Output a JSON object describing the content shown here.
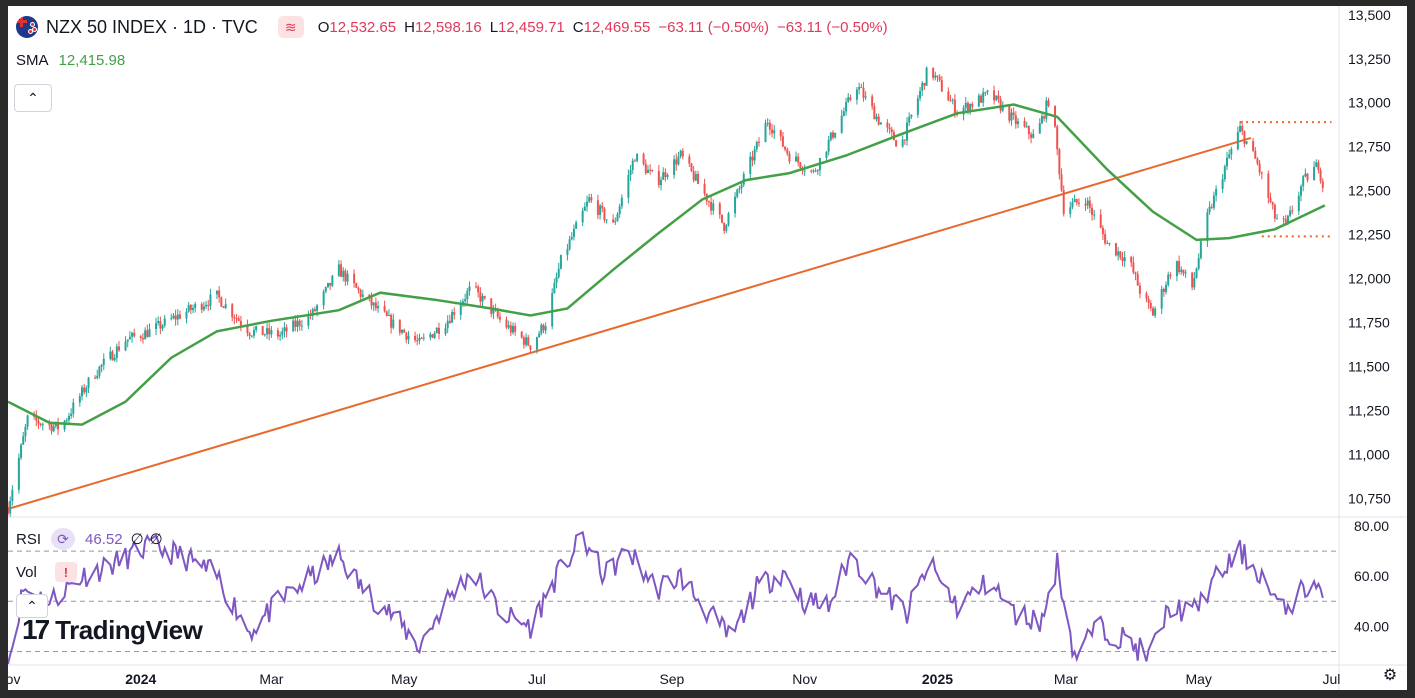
{
  "header": {
    "symbol_title": "NZX 50 INDEX · 1D · TVC",
    "ohlc": [
      {
        "label": "O",
        "value": "12,532.65"
      },
      {
        "label": "H",
        "value": "12,598.16"
      },
      {
        "label": "L",
        "value": "12,459.71"
      },
      {
        "label": "C",
        "value": "12,469.55"
      }
    ],
    "change_1": "−63.11 (−0.50%)",
    "change_2": "−63.11 (−0.50%)",
    "flag_icon": "new-zealand-flag-icon",
    "badge_icon": "pulse-wave-icon"
  },
  "sma": {
    "label": "SMA",
    "value": "12,415.98"
  },
  "rsi_legend": {
    "label": "RSI",
    "value": "46.52",
    "extra1": "∅",
    "extra2": "∅"
  },
  "vol_legend": {
    "label": "Vol"
  },
  "logo_text": "TradingView",
  "colors": {
    "up": "#26a69a",
    "down": "#ef5350",
    "sma": "#43a047",
    "trendline": "#e8692c",
    "rsi": "#7e57c2",
    "text_red": "#e0395a"
  },
  "chart_data": [
    {
      "type": "candlestick",
      "title": "NZX 50 INDEX",
      "x_range": [
        "2023-11-01",
        "2025-07-04"
      ],
      "ylim": [
        10650,
        13550
      ],
      "price_ticks": [
        "13,500",
        "13,250",
        "13,000",
        "12,750",
        "12,500",
        "12,250",
        "12,000",
        "11,750",
        "11,500",
        "11,250",
        "11,000",
        "10,750"
      ],
      "price_tick_values": [
        13500,
        13250,
        13000,
        12750,
        12500,
        12250,
        12000,
        11750,
        11500,
        11250,
        11000,
        10750
      ],
      "time_ticks": [
        "Nov",
        "2024",
        "Mar",
        "May",
        "Jul",
        "Sep",
        "Nov",
        "2025",
        "Mar",
        "May",
        "Jul"
      ],
      "time_tick_dates": [
        "2023-11-01",
        "2024-01-01",
        "2024-03-01",
        "2024-05-01",
        "2024-07-01",
        "2024-09-01",
        "2024-11-01",
        "2025-01-01",
        "2025-03-01",
        "2025-05-01",
        "2025-07-01"
      ],
      "close_path": [
        [
          "2023-11-01",
          10700
        ],
        [
          "2023-11-10",
          11200
        ],
        [
          "2023-11-25",
          11150
        ],
        [
          "2023-12-10",
          11450
        ],
        [
          "2023-12-25",
          11650
        ],
        [
          "2024-01-05",
          11700
        ],
        [
          "2024-01-20",
          11800
        ],
        [
          "2024-02-05",
          11900
        ],
        [
          "2024-02-20",
          11700
        ],
        [
          "2024-03-05",
          11680
        ],
        [
          "2024-03-20",
          11800
        ],
        [
          "2024-04-01",
          12050
        ],
        [
          "2024-04-12",
          11900
        ],
        [
          "2024-04-25",
          11750
        ],
        [
          "2024-05-08",
          11630
        ],
        [
          "2024-05-20",
          11750
        ],
        [
          "2024-06-01",
          11950
        ],
        [
          "2024-06-15",
          11750
        ],
        [
          "2024-06-28",
          11620
        ],
        [
          "2024-07-05",
          11750
        ],
        [
          "2024-07-12",
          12100
        ],
        [
          "2024-07-25",
          12450
        ],
        [
          "2024-08-05",
          12300
        ],
        [
          "2024-08-15",
          12700
        ],
        [
          "2024-08-25",
          12550
        ],
        [
          "2024-09-05",
          12700
        ],
        [
          "2024-09-15",
          12500
        ],
        [
          "2024-09-25",
          12300
        ],
        [
          "2024-10-05",
          12600
        ],
        [
          "2024-10-15",
          12900
        ],
        [
          "2024-10-25",
          12700
        ],
        [
          "2024-11-05",
          12600
        ],
        [
          "2024-11-15",
          12850
        ],
        [
          "2024-11-25",
          13100
        ],
        [
          "2024-12-05",
          12900
        ],
        [
          "2024-12-15",
          12750
        ],
        [
          "2024-12-28",
          13200
        ],
        [
          "2025-01-10",
          12950
        ],
        [
          "2025-01-25",
          13050
        ],
        [
          "2025-02-05",
          12900
        ],
        [
          "2025-02-15",
          12800
        ],
        [
          "2025-02-22",
          13050
        ],
        [
          "2025-02-28",
          12400
        ],
        [
          "2025-03-10",
          12450
        ],
        [
          "2025-03-20",
          12200
        ],
        [
          "2025-03-30",
          12100
        ],
        [
          "2025-04-05",
          11900
        ],
        [
          "2025-04-10",
          11800
        ],
        [
          "2025-04-20",
          12100
        ],
        [
          "2025-04-28",
          11950
        ],
        [
          "2025-05-05",
          12350
        ],
        [
          "2025-05-15",
          12700
        ],
        [
          "2025-05-20",
          12850
        ],
        [
          "2025-05-28",
          12650
        ],
        [
          "2025-06-05",
          12350
        ],
        [
          "2025-06-10",
          12300
        ],
        [
          "2025-06-18",
          12550
        ],
        [
          "2025-06-25",
          12650
        ],
        [
          "2025-06-28",
          12469.55
        ]
      ],
      "sma_path": [
        [
          "2023-11-01",
          11300
        ],
        [
          "2023-11-20",
          11180
        ],
        [
          "2023-12-05",
          11170
        ],
        [
          "2023-12-25",
          11300
        ],
        [
          "2024-01-15",
          11550
        ],
        [
          "2024-02-05",
          11700
        ],
        [
          "2024-03-01",
          11760
        ],
        [
          "2024-04-01",
          11820
        ],
        [
          "2024-04-20",
          11920
        ],
        [
          "2024-05-15",
          11880
        ],
        [
          "2024-06-10",
          11830
        ],
        [
          "2024-06-28",
          11790
        ],
        [
          "2024-07-15",
          11830
        ],
        [
          "2024-08-05",
          12050
        ],
        [
          "2024-08-25",
          12250
        ],
        [
          "2024-09-15",
          12450
        ],
        [
          "2024-10-05",
          12560
        ],
        [
          "2024-10-25",
          12600
        ],
        [
          "2024-11-20",
          12700
        ],
        [
          "2024-12-15",
          12820
        ],
        [
          "2025-01-10",
          12940
        ],
        [
          "2025-02-05",
          12990
        ],
        [
          "2025-02-25",
          12920
        ],
        [
          "2025-03-20",
          12620
        ],
        [
          "2025-04-10",
          12380
        ],
        [
          "2025-04-30",
          12220
        ],
        [
          "2025-05-15",
          12230
        ],
        [
          "2025-06-05",
          12280
        ],
        [
          "2025-06-28",
          12415.98
        ]
      ],
      "trendline": [
        [
          "2023-11-01",
          10690
        ],
        [
          "2025-05-25",
          12800
        ]
      ],
      "resistance_level": {
        "value": 12890,
        "from": "2025-05-20",
        "to": "2025-07-01"
      },
      "support_level": {
        "value": 12240,
        "from": "2025-05-30",
        "to": "2025-07-01"
      }
    },
    {
      "type": "line",
      "title": "RSI",
      "ylim": [
        25,
        82
      ],
      "ticks": [
        "80.00",
        "60.00",
        "40.00"
      ],
      "tick_values": [
        80,
        60,
        40
      ],
      "bands": [
        70,
        50,
        30
      ],
      "path": [
        [
          "2023-11-01",
          25
        ],
        [
          "2023-11-08",
          55
        ],
        [
          "2023-11-20",
          50
        ],
        [
          "2023-12-05",
          60
        ],
        [
          "2023-12-20",
          65
        ],
        [
          "2024-01-05",
          72
        ],
        [
          "2024-01-20",
          68
        ],
        [
          "2024-02-05",
          60
        ],
        [
          "2024-02-20",
          38
        ],
        [
          "2024-03-05",
          50
        ],
        [
          "2024-03-20",
          60
        ],
        [
          "2024-04-01",
          68
        ],
        [
          "2024-04-12",
          55
        ],
        [
          "2024-04-25",
          45
        ],
        [
          "2024-05-08",
          32
        ],
        [
          "2024-05-20",
          50
        ],
        [
          "2024-06-01",
          62
        ],
        [
          "2024-06-15",
          45
        ],
        [
          "2024-06-28",
          40
        ],
        [
          "2024-07-10",
          60
        ],
        [
          "2024-07-22",
          75
        ],
        [
          "2024-08-01",
          60
        ],
        [
          "2024-08-12",
          70
        ],
        [
          "2024-08-25",
          55
        ],
        [
          "2024-09-05",
          60
        ],
        [
          "2024-09-18",
          45
        ],
        [
          "2024-09-28",
          35
        ],
        [
          "2024-10-10",
          55
        ],
        [
          "2024-10-22",
          62
        ],
        [
          "2024-11-01",
          50
        ],
        [
          "2024-11-12",
          48
        ],
        [
          "2024-11-22",
          68
        ],
        [
          "2024-12-05",
          55
        ],
        [
          "2024-12-18",
          45
        ],
        [
          "2024-12-28",
          65
        ],
        [
          "2025-01-10",
          48
        ],
        [
          "2025-01-25",
          58
        ],
        [
          "2025-02-05",
          45
        ],
        [
          "2025-02-18",
          42
        ],
        [
          "2025-02-25",
          65
        ],
        [
          "2025-03-05",
          28
        ],
        [
          "2025-03-15",
          40
        ],
        [
          "2025-03-28",
          35
        ],
        [
          "2025-04-08",
          28
        ],
        [
          "2025-04-18",
          48
        ],
        [
          "2025-04-28",
          45
        ],
        [
          "2025-05-08",
          58
        ],
        [
          "2025-05-20",
          70
        ],
        [
          "2025-05-30",
          60
        ],
        [
          "2025-06-08",
          45
        ],
        [
          "2025-06-18",
          55
        ],
        [
          "2025-06-25",
          57
        ],
        [
          "2025-06-28",
          46.52
        ]
      ]
    }
  ]
}
